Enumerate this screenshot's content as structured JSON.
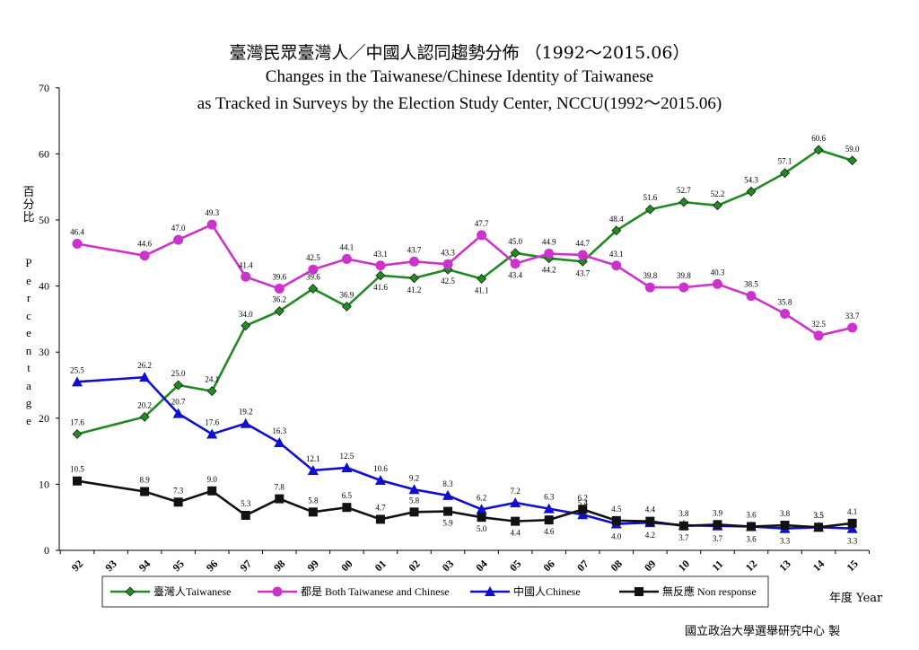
{
  "title": {
    "zh": "臺灣民眾臺灣人／中國人認同趨勢分佈 （1992～2015.06）",
    "en_line1": "Changes in the Taiwanese/Chinese Identity of Taiwanese",
    "en_line2": "as Tracked in Surveys by the Election Study Center, NCCU(1992～2015.06)"
  },
  "ylabel_zh": "百分比",
  "ylabel_en": "Percentage",
  "xlabel": "年度 Year",
  "source": "國立政治大學選舉研究中心 製",
  "colors": {
    "taiwanese": "#238a23",
    "both": "#cc33cc",
    "chinese": "#1010cc",
    "nonresponse": "#111111"
  },
  "chart_data": {
    "type": "line",
    "x": [
      "92",
      "93",
      "94",
      "95",
      "96",
      "97",
      "98",
      "99",
      "00",
      "01",
      "02",
      "03",
      "04",
      "05",
      "06",
      "07",
      "08",
      "09",
      "10",
      "11",
      "12",
      "13",
      "14",
      "15"
    ],
    "ylim": [
      0,
      70
    ],
    "yticks": [
      "0",
      "10",
      "20",
      "30",
      "40",
      "50",
      "60",
      "70"
    ],
    "legend_position": "bottom",
    "series": [
      {
        "key": "taiwanese",
        "name": "臺灣人Taiwanese",
        "marker": "diamond",
        "values": [
          17.6,
          null,
          20.2,
          25.0,
          24.1,
          34.0,
          36.2,
          39.6,
          36.9,
          41.6,
          41.2,
          42.5,
          41.1,
          45.0,
          44.2,
          43.7,
          48.4,
          51.6,
          52.7,
          52.2,
          54.3,
          57.1,
          60.6,
          59.0
        ],
        "labels": [
          "17.6",
          "",
          "20.2",
          "25.0",
          "24.1",
          "34.0",
          "36.2",
          "39.6",
          "36.9",
          "41.6",
          "41.2",
          "42.5",
          "41.1",
          "45.0",
          "44.2",
          "43.7",
          "48.4",
          "51.6",
          "52.7",
          "52.2",
          "54.3",
          "57.1",
          "60.6",
          "59.0"
        ]
      },
      {
        "key": "both",
        "name": "都是 Both Taiwanese and Chinese",
        "marker": "circle",
        "values": [
          46.4,
          null,
          44.6,
          47.0,
          49.3,
          41.4,
          39.6,
          42.5,
          44.1,
          43.1,
          43.7,
          43.3,
          47.7,
          43.4,
          44.9,
          44.7,
          43.1,
          39.8,
          39.8,
          40.3,
          38.5,
          35.8,
          32.5,
          33.7
        ],
        "labels": [
          "46.4",
          "",
          "44.6",
          "47.0",
          "49.3",
          "41.4",
          "39.6",
          "42.5",
          "44.1",
          "43.1",
          "43.7",
          "43.3",
          "47.7",
          "43.4",
          "44.9",
          "44.7",
          "43.1",
          "39.8",
          "39.8",
          "40.3",
          "38.5",
          "35.8",
          "32.5",
          "33.7"
        ]
      },
      {
        "key": "chinese",
        "name": "中國人Chinese",
        "marker": "triangle",
        "values": [
          25.5,
          null,
          26.2,
          20.7,
          17.6,
          19.2,
          16.3,
          12.1,
          12.5,
          10.6,
          9.2,
          8.3,
          6.2,
          7.2,
          6.3,
          5.4,
          4.0,
          4.2,
          3.8,
          3.7,
          3.6,
          3.3,
          3.5,
          3.3
        ],
        "labels": [
          "25.5",
          "",
          "26.2",
          "20.7",
          "17.6",
          "19.2",
          "16.3",
          "12.1",
          "12.5",
          "10.6",
          "9.2",
          "8.3",
          "6.2",
          "7.2",
          "6.3",
          "5.4",
          "4.0",
          "4.2",
          "3.8",
          "3.7",
          "3.6",
          "3.3",
          "3.5",
          "3.3"
        ]
      },
      {
        "key": "nonresponse",
        "name": "無反應 Non response",
        "marker": "square",
        "values": [
          10.5,
          null,
          8.9,
          7.3,
          9.0,
          5.3,
          7.8,
          5.8,
          6.5,
          4.7,
          5.8,
          5.9,
          5.0,
          4.4,
          4.6,
          6.2,
          4.5,
          4.4,
          3.7,
          3.9,
          3.6,
          3.8,
          3.5,
          4.1
        ],
        "labels": [
          "10.5",
          "",
          "8.9",
          "7.3",
          "9.0",
          "5.3",
          "7.8",
          "5.8",
          "6.5",
          "4.7",
          "5.8",
          "5.9",
          "5.0",
          "4.4",
          "4.6",
          "6.2",
          "4.5",
          "4.4",
          "3.7",
          "3.9",
          "3.6",
          "3.8",
          "3.5",
          "4.1"
        ]
      }
    ]
  }
}
